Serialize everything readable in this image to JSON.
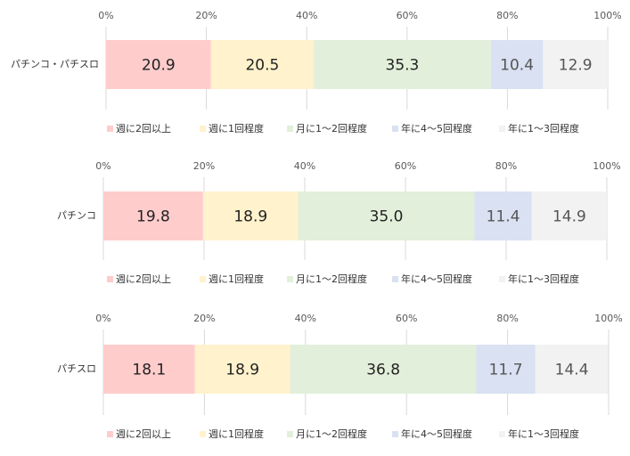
{
  "chart_data": [
    {
      "type": "bar",
      "orientation": "horizontal",
      "stacked": true,
      "categories": [
        "パチンコ・パチスロ"
      ],
      "series": [
        {
          "name": "週に2回以上",
          "values": [
            20.9
          ]
        },
        {
          "name": "週に1回程度",
          "values": [
            20.5
          ]
        },
        {
          "name": "月に1～2回程度",
          "values": [
            35.3
          ]
        },
        {
          "name": "年に4～5回程度",
          "values": [
            10.4
          ]
        },
        {
          "name": "年に1～3回程度",
          "values": [
            12.9
          ]
        }
      ],
      "xticks": [
        "0%",
        "20%",
        "40%",
        "60%",
        "80%",
        "100%"
      ],
      "xlim": [
        0,
        100
      ],
      "grid": true,
      "legend": "bottom"
    },
    {
      "type": "bar",
      "orientation": "horizontal",
      "stacked": true,
      "categories": [
        "パチンコ"
      ],
      "series": [
        {
          "name": "週に2回以上",
          "values": [
            19.8
          ]
        },
        {
          "name": "週に1回程度",
          "values": [
            18.9
          ]
        },
        {
          "name": "月に1～2回程度",
          "values": [
            35.0
          ]
        },
        {
          "name": "年に4～5回程度",
          "values": [
            11.4
          ]
        },
        {
          "name": "年に1～3回程度",
          "values": [
            14.9
          ]
        }
      ],
      "xticks": [
        "0%",
        "20%",
        "40%",
        "60%",
        "80%",
        "100%"
      ],
      "xlim": [
        0,
        100
      ],
      "grid": true,
      "legend": "bottom"
    },
    {
      "type": "bar",
      "orientation": "horizontal",
      "stacked": true,
      "categories": [
        "パチスロ"
      ],
      "series": [
        {
          "name": "週に2回以上",
          "values": [
            18.1
          ]
        },
        {
          "name": "週に1回程度",
          "values": [
            18.9
          ]
        },
        {
          "name": "月に1～2回程度",
          "values": [
            36.8
          ]
        },
        {
          "name": "年に4～5回程度",
          "values": [
            11.7
          ]
        },
        {
          "name": "年に1～3回程度",
          "values": [
            14.4
          ]
        }
      ],
      "xticks": [
        "0%",
        "20%",
        "40%",
        "60%",
        "80%",
        "100%"
      ],
      "xlim": [
        0,
        100
      ],
      "grid": true,
      "legend": "bottom"
    }
  ],
  "colors": [
    "#ffcccc",
    "#fff2cc",
    "#e2efda",
    "#d9e1f2",
    "#f2f2f2"
  ],
  "label_colors": [
    "#222222",
    "#222222",
    "#222222",
    "#555555",
    "#555555"
  ]
}
